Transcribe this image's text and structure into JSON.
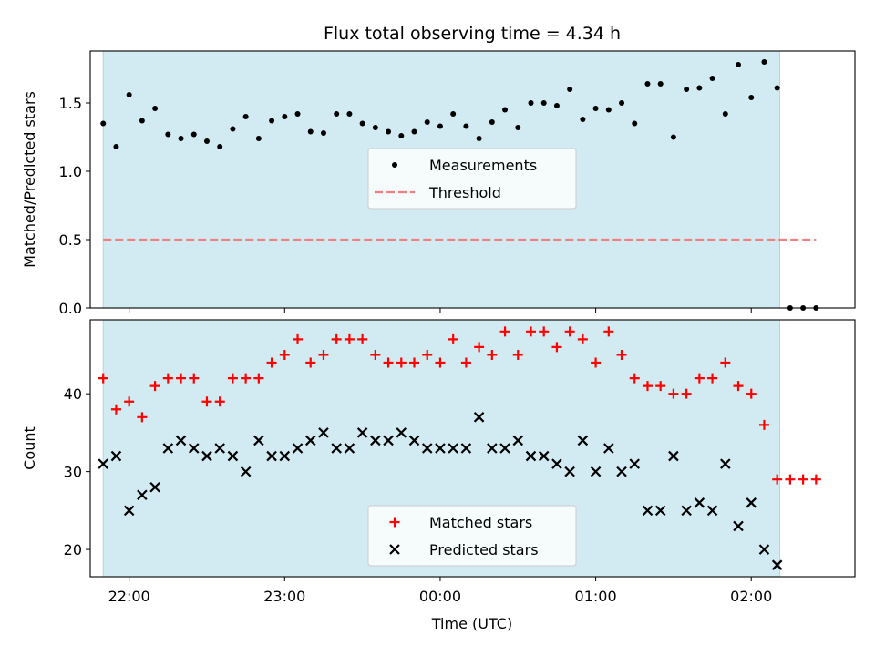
{
  "chart_data": {
    "type": "scatter",
    "title": "Flux total observing time = 4.34 h",
    "xlabel": "Time (UTC)",
    "x_axis": {
      "type": "time",
      "range": [
        "21:45",
        "02:40"
      ],
      "ticks": [
        "22:00",
        "23:00",
        "00:00",
        "01:00",
        "02:00"
      ]
    },
    "shaded_span": {
      "start": "21:50",
      "end": "02:11",
      "color": "#add8e6"
    },
    "x_times": [
      "21:50",
      "21:55",
      "22:00",
      "22:05",
      "22:10",
      "22:15",
      "22:20",
      "22:25",
      "22:30",
      "22:35",
      "22:40",
      "22:45",
      "22:50",
      "22:55",
      "23:00",
      "23:05",
      "23:10",
      "23:15",
      "23:20",
      "23:25",
      "23:30",
      "23:35",
      "23:40",
      "23:45",
      "23:50",
      "23:55",
      "00:00",
      "00:05",
      "00:10",
      "00:15",
      "00:20",
      "00:25",
      "00:30",
      "00:35",
      "00:40",
      "00:45",
      "00:50",
      "00:55",
      "01:00",
      "01:05",
      "01:10",
      "01:15",
      "01:20",
      "01:25",
      "01:30",
      "01:35",
      "01:40",
      "01:45",
      "01:50",
      "01:55",
      "02:00",
      "02:05",
      "02:10",
      "02:15",
      "02:20",
      "02:25"
    ],
    "panels": [
      {
        "ylabel": "Matched/Predicted stars",
        "ylim": [
          0,
          1.88
        ],
        "yticks": [
          0.0,
          0.5,
          1.0,
          1.5
        ],
        "tick_format": "1dp",
        "legend": "center",
        "series": [
          {
            "name": "Measurements",
            "marker": "dot",
            "color": "#000000",
            "values": [
              1.35,
              1.18,
              1.56,
              1.37,
              1.46,
              1.27,
              1.24,
              1.27,
              1.22,
              1.18,
              1.31,
              1.4,
              1.24,
              1.37,
              1.4,
              1.42,
              1.29,
              1.28,
              1.42,
              1.42,
              1.35,
              1.32,
              1.29,
              1.26,
              1.29,
              1.36,
              1.33,
              1.42,
              1.33,
              1.24,
              1.36,
              1.45,
              1.32,
              1.5,
              1.5,
              1.48,
              1.6,
              1.38,
              1.46,
              1.45,
              1.5,
              1.35,
              1.64,
              1.64,
              1.25,
              1.6,
              1.61,
              1.68,
              1.42,
              1.78,
              1.54,
              1.8,
              1.61,
              0.0,
              0.0,
              0.0
            ]
          },
          {
            "name": "Threshold",
            "type": "line",
            "style": "dashed",
            "color": "#f08080",
            "x_range": [
              "21:50",
              "02:25"
            ],
            "y": 0.5
          }
        ]
      },
      {
        "ylabel": "Count",
        "ylim": [
          16.5,
          49.5
        ],
        "yticks": [
          20,
          30,
          40
        ],
        "tick_format": "int",
        "legend": "lower center",
        "series": [
          {
            "name": "Matched stars",
            "marker": "plus",
            "color": "#ff0000",
            "values": [
              42,
              38,
              39,
              37,
              41,
              42,
              42,
              42,
              39,
              39,
              42,
              42,
              42,
              44,
              45,
              47,
              44,
              45,
              47,
              47,
              47,
              45,
              44,
              44,
              44,
              45,
              44,
              47,
              44,
              46,
              45,
              48,
              45,
              48,
              48,
              46,
              48,
              47,
              44,
              48,
              45,
              42,
              41,
              41,
              40,
              40,
              42,
              42,
              44,
              41,
              40,
              36,
              29,
              29,
              29,
              29
            ]
          },
          {
            "name": "Predicted stars",
            "marker": "x",
            "color": "#000000",
            "values": [
              31,
              32,
              25,
              27,
              28,
              33,
              34,
              33,
              32,
              33,
              32,
              30,
              34,
              32,
              32,
              33,
              34,
              35,
              33,
              33,
              35,
              34,
              34,
              35,
              34,
              33,
              33,
              33,
              33,
              37,
              33,
              33,
              34,
              32,
              32,
              31,
              30,
              34,
              30,
              33,
              30,
              31,
              25,
              25,
              32,
              25,
              26,
              25,
              31,
              23,
              26,
              20,
              18,
              null,
              null,
              null
            ]
          }
        ]
      }
    ]
  }
}
